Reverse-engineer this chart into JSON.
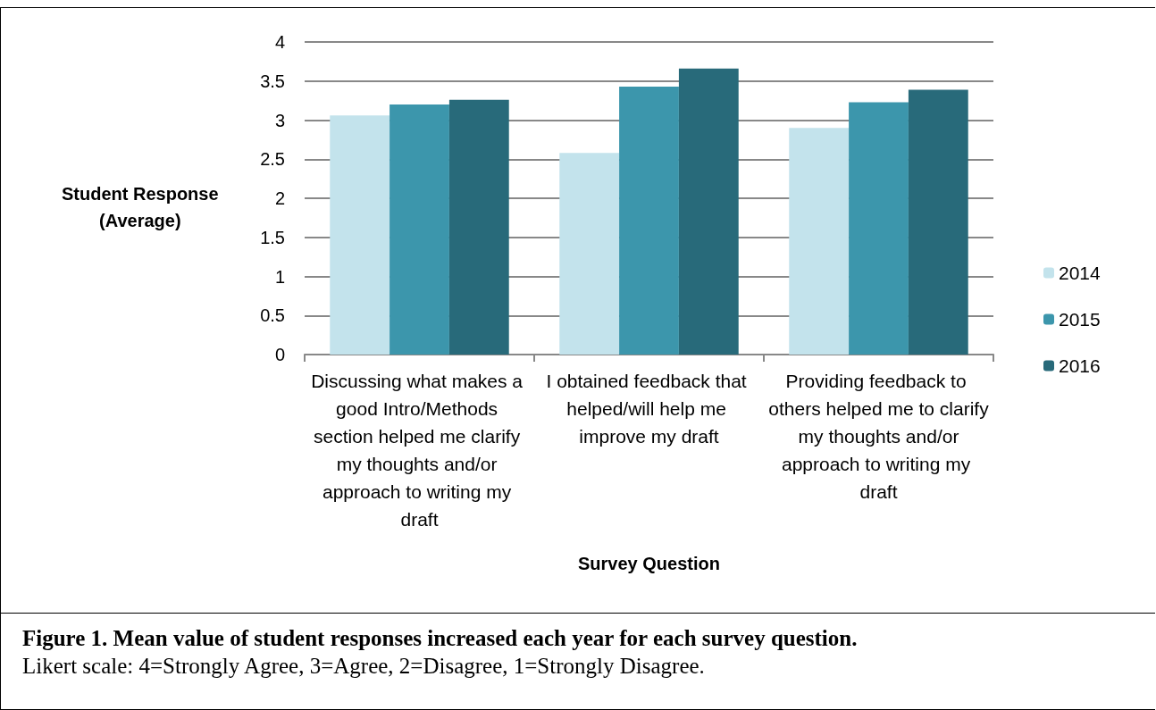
{
  "chart_data": {
    "type": "bar",
    "xlabel": "Survey Question",
    "ylabel": "Student Response\n(Average)",
    "categories": [
      "Discussing what makes a good Intro/Methods section helped me clarify my thoughts and/or approach to writing my draft",
      "I obtained feedback that helped/will help me improve my draft",
      "Providing feedback to others helped me to clarify my thoughts and/or approach to writing my draft"
    ],
    "series": [
      {
        "name": "2014",
        "color": "#c3e3ec",
        "values": [
          3.06,
          2.58,
          2.9
        ]
      },
      {
        "name": "2015",
        "color": "#3c96ac",
        "values": [
          3.2,
          3.43,
          3.23
        ]
      },
      {
        "name": "2016",
        "color": "#286a7a",
        "values": [
          3.26,
          3.66,
          3.39
        ]
      }
    ],
    "ylim": [
      0,
      4
    ],
    "yticks": [
      0,
      0.5,
      1,
      1.5,
      2,
      2.5,
      3,
      3.5,
      4
    ],
    "grid": "y",
    "legend": "right",
    "annotations": [
      "Figure 1. Mean value of student responses increased each year for each survey question.",
      "Likert scale: 4=Strongly Agree, 3=Agree, 2=Disagree, 1=Strongly Disagree."
    ]
  }
}
